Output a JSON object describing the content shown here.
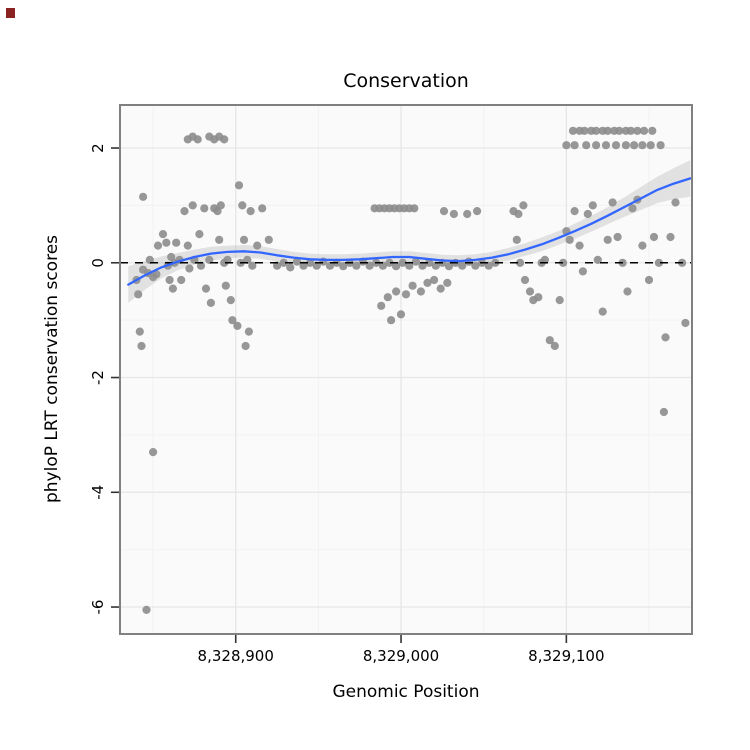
{
  "title": "Conservation",
  "ui": {
    "corner_marker_color": "#8B2222"
  },
  "chart_data": {
    "type": "scatter",
    "title": "Conservation",
    "xlabel": "Genomic Position",
    "ylabel": "phyloP LRT conservation scores",
    "xlim": [
      8328830,
      8329176
    ],
    "ylim": [
      -6.47,
      2.75
    ],
    "grid": true,
    "legend": "none",
    "x_ticks": [
      {
        "value": 8328900,
        "label": "8,328,900"
      },
      {
        "value": 8329000,
        "label": "8,329,000"
      },
      {
        "value": 8329100,
        "label": "8,329,100"
      }
    ],
    "y_ticks": [
      {
        "value": 2,
        "label": "2"
      },
      {
        "value": 0,
        "label": "0"
      },
      {
        "value": -2,
        "label": "-2"
      },
      {
        "value": -4,
        "label": "-4"
      },
      {
        "value": -6,
        "label": "-6"
      }
    ],
    "hline": {
      "y": 0,
      "style": "dashed",
      "color": "#000000"
    },
    "colors": {
      "point": "#8C8C8C",
      "smooth_line": "#3366FF",
      "band": "#999999",
      "band_opacity": 0.25,
      "panel": "#FAFAFA",
      "grid_major": "#E6E6E6",
      "grid_minor": "#F2F2F2",
      "panel_border": "#808080",
      "axis_text": "#000000"
    },
    "points": [
      [
        8328846,
        -6.05
      ],
      [
        8328850,
        -3.3
      ],
      [
        8328843,
        -1.45
      ],
      [
        8328842,
        -1.2
      ],
      [
        8328840,
        -0.3
      ],
      [
        8328841,
        -0.55
      ],
      [
        8328844,
        -0.12
      ],
      [
        8328847,
        -0.18
      ],
      [
        8328848,
        0.05
      ],
      [
        8328850,
        -0.25
      ],
      [
        8328852,
        -0.2
      ],
      [
        8328853,
        0.3
      ],
      [
        8328844,
        1.15
      ],
      [
        8328856,
        0.5
      ],
      [
        8328858,
        0.35
      ],
      [
        8328859,
        -0.05
      ],
      [
        8328860,
        -0.3
      ],
      [
        8328861,
        0.1
      ],
      [
        8328862,
        -0.45
      ],
      [
        8328863,
        0.0
      ],
      [
        8328864,
        0.35
      ],
      [
        8328866,
        0.05
      ],
      [
        8328867,
        -0.3
      ],
      [
        8328869,
        0.9
      ],
      [
        8328871,
        0.3
      ],
      [
        8328872,
        -0.1
      ],
      [
        8328874,
        1.0
      ],
      [
        8328875,
        0.05
      ],
      [
        8328878,
        0.5
      ],
      [
        8328879,
        -0.05
      ],
      [
        8328881,
        0.95
      ],
      [
        8328882,
        -0.45
      ],
      [
        8328884,
        0.05
      ],
      [
        8328885,
        -0.7
      ],
      [
        8328871,
        2.15
      ],
      [
        8328874,
        2.2
      ],
      [
        8328877,
        2.15
      ],
      [
        8328884,
        2.2
      ],
      [
        8328887,
        2.15
      ],
      [
        8328890,
        2.2
      ],
      [
        8328893,
        2.15
      ],
      [
        8328887,
        0.95
      ],
      [
        8328889,
        0.9
      ],
      [
        8328891,
        1.0
      ],
      [
        8328890,
        0.4
      ],
      [
        8328893,
        0.0
      ],
      [
        8328894,
        -0.4
      ],
      [
        8328895,
        0.05
      ],
      [
        8328897,
        -0.65
      ],
      [
        8328898,
        -1.0
      ],
      [
        8328901,
        -1.1
      ],
      [
        8328902,
        1.35
      ],
      [
        8328904,
        1.0
      ],
      [
        8328903,
        0.0
      ],
      [
        8328905,
        0.4
      ],
      [
        8328906,
        -1.45
      ],
      [
        8328907,
        0.05
      ],
      [
        8328908,
        -1.2
      ],
      [
        8328909,
        0.9
      ],
      [
        8328910,
        -0.05
      ],
      [
        8328916,
        0.95
      ],
      [
        8328920,
        0.4
      ],
      [
        8328913,
        0.3
      ],
      [
        8328925,
        -0.05
      ],
      [
        8328929,
        0.0
      ],
      [
        8328933,
        -0.08
      ],
      [
        8328937,
        0.02
      ],
      [
        8328941,
        -0.05
      ],
      [
        8328945,
        0.0
      ],
      [
        8328949,
        -0.05
      ],
      [
        8328953,
        0.02
      ],
      [
        8328957,
        -0.05
      ],
      [
        8328961,
        0.0
      ],
      [
        8328965,
        -0.06
      ],
      [
        8328969,
        0.0
      ],
      [
        8328973,
        -0.05
      ],
      [
        8328977,
        0.02
      ],
      [
        8328981,
        -0.05
      ],
      [
        8328985,
        0.0
      ],
      [
        8328989,
        -0.05
      ],
      [
        8328993,
        0.0
      ],
      [
        8328997,
        -0.06
      ],
      [
        8329001,
        0.0
      ],
      [
        8329005,
        -0.05
      ],
      [
        8329009,
        0.02
      ],
      [
        8329013,
        -0.05
      ],
      [
        8329017,
        0.0
      ],
      [
        8329021,
        -0.05
      ],
      [
        8329025,
        0.0
      ],
      [
        8329029,
        -0.06
      ],
      [
        8329033,
        0.0
      ],
      [
        8329037,
        -0.05
      ],
      [
        8329041,
        0.02
      ],
      [
        8329045,
        -0.05
      ],
      [
        8329049,
        0.0
      ],
      [
        8329053,
        -0.05
      ],
      [
        8329057,
        0.0
      ],
      [
        8328984,
        0.95
      ],
      [
        8328987,
        0.95
      ],
      [
        8328990,
        0.95
      ],
      [
        8328993,
        0.95
      ],
      [
        8328996,
        0.95
      ],
      [
        8328999,
        0.95
      ],
      [
        8329002,
        0.95
      ],
      [
        8329005,
        0.95
      ],
      [
        8329008,
        0.95
      ],
      [
        8329026,
        0.9
      ],
      [
        8329032,
        0.85
      ],
      [
        8328988,
        -0.75
      ],
      [
        8328992,
        -0.6
      ],
      [
        8328994,
        -1.0
      ],
      [
        8328997,
        -0.5
      ],
      [
        8329000,
        -0.9
      ],
      [
        8329003,
        -0.55
      ],
      [
        8329007,
        -0.4
      ],
      [
        8329012,
        -0.5
      ],
      [
        8329016,
        -0.35
      ],
      [
        8329020,
        -0.3
      ],
      [
        8329024,
        -0.45
      ],
      [
        8329028,
        -0.35
      ],
      [
        8329040,
        0.85
      ],
      [
        8329046,
        0.9
      ],
      [
        8329068,
        0.9
      ],
      [
        8329071,
        0.85
      ],
      [
        8329074,
        1.0
      ],
      [
        8329070,
        0.4
      ],
      [
        8329072,
        0.0
      ],
      [
        8329075,
        -0.3
      ],
      [
        8329078,
        -0.5
      ],
      [
        8329080,
        -0.65
      ],
      [
        8329083,
        -0.6
      ],
      [
        8329085,
        0.0
      ],
      [
        8329087,
        0.05
      ],
      [
        8329090,
        -1.35
      ],
      [
        8329093,
        -1.45
      ],
      [
        8329096,
        -0.65
      ],
      [
        8329098,
        0.0
      ],
      [
        8329100,
        0.55
      ],
      [
        8329102,
        0.4
      ],
      [
        8329105,
        0.9
      ],
      [
        8329108,
        0.3
      ],
      [
        8329110,
        -0.15
      ],
      [
        8329113,
        0.85
      ],
      [
        8329116,
        1.0
      ],
      [
        8329119,
        0.05
      ],
      [
        8329122,
        -0.85
      ],
      [
        8329125,
        0.4
      ],
      [
        8329128,
        1.05
      ],
      [
        8329131,
        0.45
      ],
      [
        8329134,
        0.0
      ],
      [
        8329137,
        -0.5
      ],
      [
        8329140,
        0.95
      ],
      [
        8329143,
        1.1
      ],
      [
        8329146,
        0.3
      ],
      [
        8329150,
        -0.3
      ],
      [
        8329153,
        0.45
      ],
      [
        8329156,
        0.0
      ],
      [
        8329159,
        -2.6
      ],
      [
        8329160,
        -1.3
      ],
      [
        8329163,
        0.45
      ],
      [
        8329166,
        1.05
      ],
      [
        8329170,
        0.0
      ],
      [
        8329172,
        -1.05
      ],
      [
        8329104,
        2.3
      ],
      [
        8329108,
        2.3
      ],
      [
        8329111,
        2.3
      ],
      [
        8329115,
        2.3
      ],
      [
        8329118,
        2.3
      ],
      [
        8329122,
        2.3
      ],
      [
        8329125,
        2.3
      ],
      [
        8329129,
        2.3
      ],
      [
        8329132,
        2.3
      ],
      [
        8329136,
        2.3
      ],
      [
        8329139,
        2.3
      ],
      [
        8329143,
        2.3
      ],
      [
        8329147,
        2.3
      ],
      [
        8329152,
        2.3
      ],
      [
        8329100,
        2.05
      ],
      [
        8329105,
        2.05
      ],
      [
        8329112,
        2.05
      ],
      [
        8329118,
        2.05
      ],
      [
        8329124,
        2.05
      ],
      [
        8329130,
        2.05
      ],
      [
        8329136,
        2.05
      ],
      [
        8329141,
        2.05
      ],
      [
        8329146,
        2.05
      ],
      [
        8329151,
        2.05
      ],
      [
        8329157,
        2.05
      ]
    ],
    "smooth": {
      "x": [
        8328835,
        8328845,
        8328855,
        8328865,
        8328875,
        8328885,
        8328895,
        8328905,
        8328915,
        8328925,
        8328935,
        8328945,
        8328955,
        8328965,
        8328975,
        8328985,
        8328995,
        8329005,
        8329015,
        8329025,
        8329035,
        8329045,
        8329055,
        8329065,
        8329075,
        8329085,
        8329095,
        8329105,
        8329115,
        8329125,
        8329135,
        8329145,
        8329155,
        8329165,
        8329175
      ],
      "y": [
        -0.38,
        -0.22,
        -0.08,
        0.02,
        0.1,
        0.16,
        0.19,
        0.2,
        0.18,
        0.13,
        0.09,
        0.06,
        0.05,
        0.05,
        0.06,
        0.08,
        0.1,
        0.1,
        0.07,
        0.04,
        0.03,
        0.05,
        0.09,
        0.15,
        0.23,
        0.32,
        0.43,
        0.55,
        0.68,
        0.82,
        0.97,
        1.12,
        1.27,
        1.38,
        1.47
      ],
      "half_width": [
        0.32,
        0.25,
        0.19,
        0.15,
        0.13,
        0.12,
        0.11,
        0.11,
        0.11,
        0.11,
        0.1,
        0.1,
        0.1,
        0.1,
        0.1,
        0.1,
        0.1,
        0.1,
        0.1,
        0.1,
        0.1,
        0.1,
        0.1,
        0.11,
        0.11,
        0.12,
        0.12,
        0.13,
        0.14,
        0.15,
        0.17,
        0.2,
        0.23,
        0.27,
        0.32
      ]
    }
  }
}
